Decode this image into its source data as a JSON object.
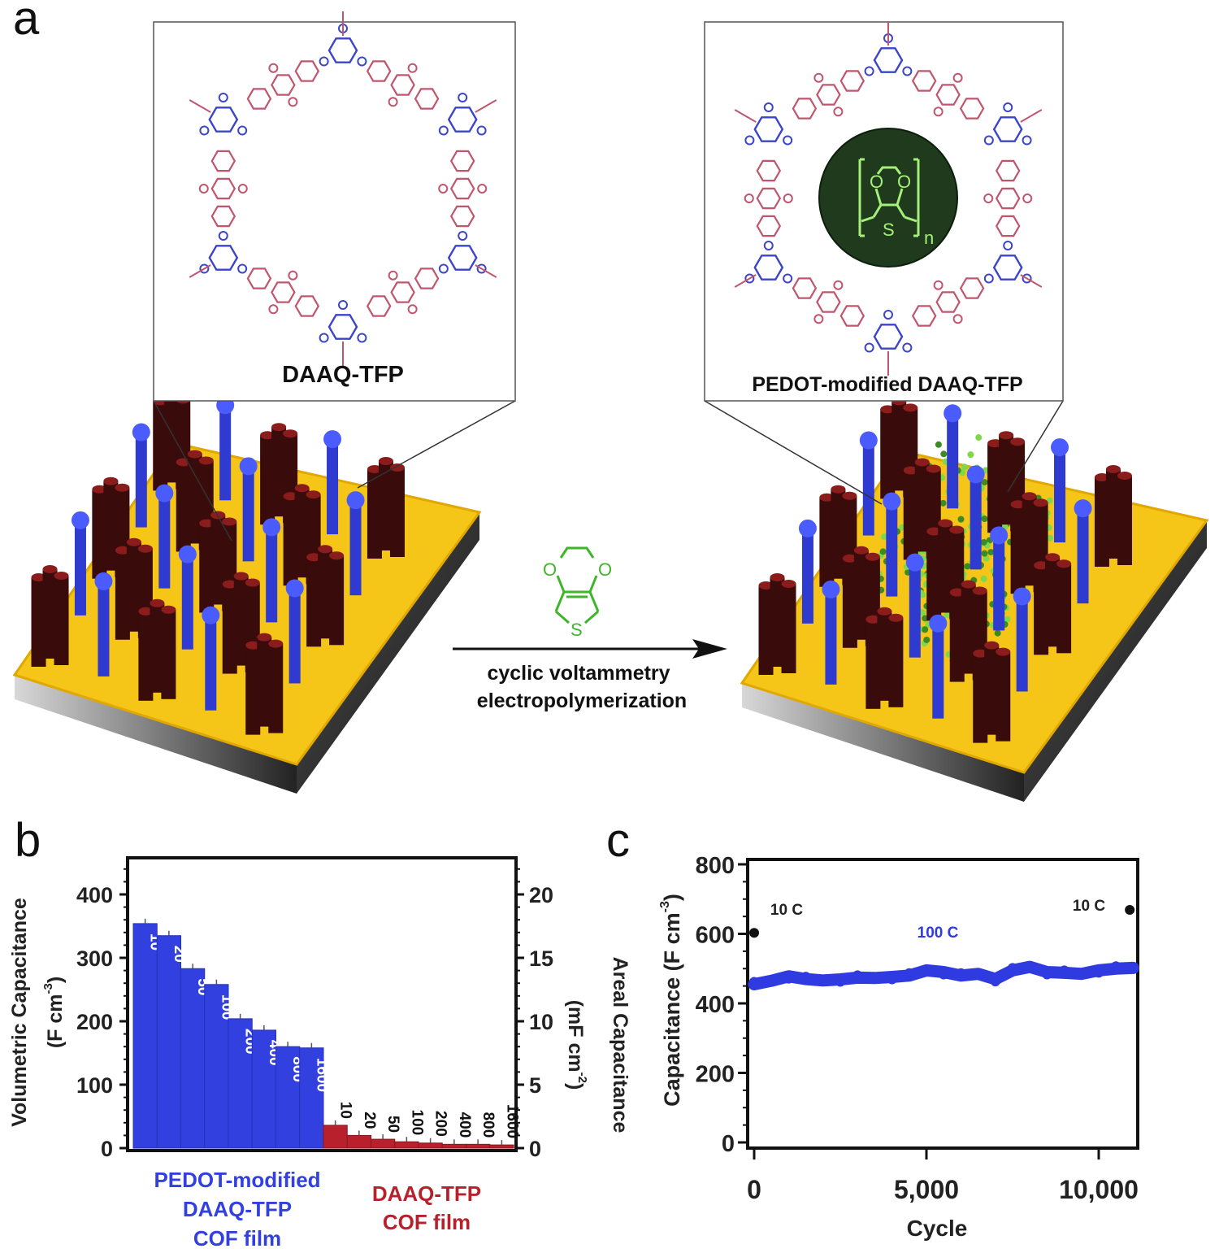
{
  "panels": {
    "a": "a",
    "b": "b",
    "c": "c"
  },
  "diagram": {
    "left_box_label": "DAAQ-TFP",
    "right_box_label": "PEDOT-modified DAAQ-TFP",
    "pedot_atoms": {
      "o1": "O",
      "o2": "O",
      "s": "S",
      "n": "n"
    },
    "edot_atoms": {
      "o1": "O",
      "o2": "O",
      "s": "S"
    },
    "arrow_line1": "cyclic voltammetry",
    "arrow_line2": "electropolymerization",
    "colors": {
      "daaq": "#c0566e",
      "tfp": "#3b45c8",
      "pedot": "#7fe05a",
      "gold": "#f5c518",
      "pillar": "#3a0b0b"
    }
  },
  "chart_data": [
    {
      "type": "bar",
      "ylabel": "Volumetric Capacitance",
      "ylabel_units": "(F cm",
      "ylabel_exp": "-3",
      "y2label": "Areal Capacitance",
      "y2label_units": "(mF cm",
      "y2label_exp": "-2",
      "ylim": [
        0,
        460
      ],
      "y2lim": [
        0,
        23
      ],
      "yticks": [
        "0",
        "100",
        "200",
        "300",
        "400"
      ],
      "y2ticks": [
        "0",
        "5",
        "10",
        "15",
        "20"
      ],
      "grid": false,
      "series": [
        {
          "name": "PEDOT-modified DAAQ-TFP COF film",
          "name_lines": [
            "PEDOT-modified",
            "DAAQ-TFP",
            "COF film"
          ],
          "color": "#3340e0",
          "categories": [
            "10",
            "20",
            "50",
            "100",
            "200",
            "400",
            "800",
            "1600"
          ],
          "values": [
            354,
            335,
            283,
            258,
            204,
            186,
            160,
            158
          ]
        },
        {
          "name": "DAAQ-TFP COF film",
          "name_lines": [
            "DAAQ-TFP",
            "COF film"
          ],
          "color": "#b8202c",
          "categories": [
            "10",
            "20",
            "50",
            "100",
            "200",
            "400",
            "800",
            "1600"
          ],
          "values": [
            36,
            20,
            14,
            10,
            8,
            6,
            6,
            5
          ]
        }
      ]
    },
    {
      "type": "scatter",
      "xlabel": "Cycle",
      "ylabel": "Capacitance (F cm",
      "ylabel_exp": "-3",
      "ylabel_close": ")",
      "xlim": [
        -200,
        11200
      ],
      "ylim": [
        -20,
        820
      ],
      "xticks": [
        "0",
        "5,000",
        "10,000"
      ],
      "xtick_values": [
        0,
        5000,
        10000
      ],
      "yticks": [
        "0",
        "200",
        "400",
        "600",
        "800"
      ],
      "grid": false,
      "series": [
        {
          "name": "10 C",
          "color": "#111111",
          "x": [
            0
          ],
          "y": [
            603
          ]
        },
        {
          "name": "100 C",
          "color": "#2f3be0",
          "x": [
            0,
            500,
            1000,
            1500,
            2000,
            2500,
            3000,
            3500,
            4000,
            4500,
            5000,
            5500,
            6000,
            6500,
            7000,
            7500,
            8000,
            8500,
            9000,
            9500,
            10000,
            10500,
            11000
          ],
          "y": [
            455,
            465,
            478,
            470,
            466,
            469,
            474,
            473,
            476,
            480,
            495,
            490,
            480,
            485,
            470,
            495,
            505,
            490,
            488,
            485,
            495,
            500,
            502
          ]
        },
        {
          "name": "10 C",
          "color": "#111111",
          "x": [
            10900
          ],
          "y": [
            669
          ]
        }
      ]
    }
  ]
}
